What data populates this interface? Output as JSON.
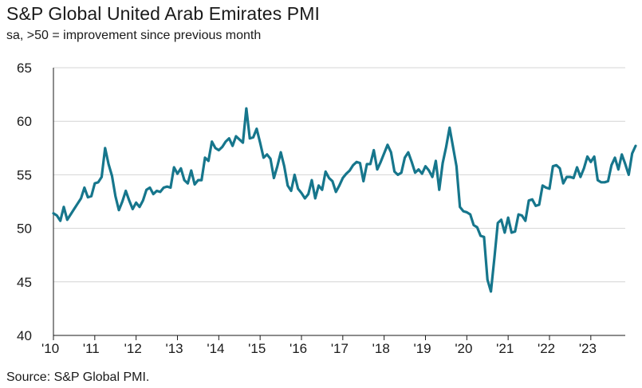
{
  "chart_data": {
    "type": "line",
    "title": "S&P Global United Arab Emirates PMI",
    "subtitle": "sa, >50 = improvement since previous month",
    "source": "Source: S&P Global PMI.",
    "xlabel": "",
    "ylabel": "",
    "ylim": [
      40,
      65
    ],
    "yticks": [
      "40",
      "45",
      "50",
      "55",
      "60",
      "65"
    ],
    "xlim": [
      2010.0,
      2023.833
    ],
    "xticks": [
      {
        "value": 2010,
        "label": "'10"
      },
      {
        "value": 2011,
        "label": "'11"
      },
      {
        "value": 2012,
        "label": "'12"
      },
      {
        "value": 2013,
        "label": "'13"
      },
      {
        "value": 2014,
        "label": "'14"
      },
      {
        "value": 2015,
        "label": "'15"
      },
      {
        "value": 2016,
        "label": "'16"
      },
      {
        "value": 2017,
        "label": "'17"
      },
      {
        "value": 2018,
        "label": "'18"
      },
      {
        "value": 2019,
        "label": "'19"
      },
      {
        "value": 2020,
        "label": "'20"
      },
      {
        "value": 2021,
        "label": "'21"
      },
      {
        "value": 2022,
        "label": "'22"
      },
      {
        "value": 2023,
        "label": "'23"
      }
    ],
    "grid": true,
    "legend": "none",
    "series": [
      {
        "name": "S&P Global United Arab Emirates PMI",
        "color": "#16768c",
        "start": "2010-01",
        "values": [
          51.4,
          51.2,
          50.7,
          52.0,
          50.8,
          51.3,
          51.8,
          52.3,
          52.8,
          53.8,
          52.9,
          53.0,
          54.2,
          54.3,
          54.8,
          57.5,
          56.0,
          54.9,
          53.0,
          51.7,
          52.5,
          53.5,
          52.6,
          51.8,
          52.4,
          52.0,
          52.6,
          53.6,
          53.8,
          53.2,
          53.5,
          53.4,
          53.8,
          53.9,
          53.8,
          55.7,
          55.1,
          55.6,
          54.5,
          54.2,
          55.4,
          54.1,
          54.5,
          54.5,
          56.6,
          56.3,
          58.1,
          57.5,
          57.3,
          57.6,
          58.1,
          58.4,
          57.7,
          58.6,
          58.3,
          58.0,
          61.2,
          58.4,
          58.5,
          59.3,
          58.0,
          56.6,
          56.9,
          56.5,
          54.7,
          55.8,
          57.1,
          55.8,
          54.0,
          53.5,
          55.0,
          53.7,
          53.3,
          52.8,
          53.2,
          54.5,
          52.8,
          54.0,
          53.6,
          55.3,
          54.7,
          54.4,
          53.4,
          54.0,
          54.7,
          55.1,
          55.4,
          55.9,
          56.2,
          56.1,
          54.4,
          56.0,
          56.0,
          57.3,
          55.5,
          56.2,
          57.0,
          57.8,
          57.1,
          55.3,
          55.0,
          55.2,
          56.6,
          57.1,
          56.2,
          55.2,
          55.5,
          55.1,
          55.8,
          55.4,
          54.8,
          56.3,
          53.6,
          56.1,
          57.6,
          59.4,
          57.6,
          55.8,
          52.0,
          51.6,
          51.5,
          51.3,
          50.3,
          50.1,
          49.3,
          49.2,
          45.2,
          44.1,
          47.2,
          50.5,
          50.8,
          49.6,
          51.0,
          49.6,
          49.7,
          51.3,
          51.2,
          50.7,
          52.6,
          52.7,
          52.1,
          52.2,
          54.0,
          53.8,
          53.7,
          55.8,
          55.9,
          55.6,
          54.2,
          54.8,
          54.8,
          54.7,
          55.7,
          54.8,
          55.6,
          56.7,
          56.2,
          56.7,
          54.5,
          54.3,
          54.3,
          54.4,
          55.9,
          56.6,
          55.5,
          56.9,
          56.0,
          55.0,
          57.0,
          57.7
        ]
      }
    ]
  }
}
